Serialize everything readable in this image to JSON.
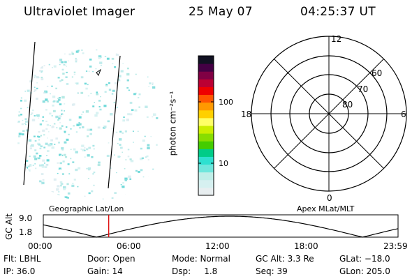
{
  "header": {
    "instrument": "Ultraviolet Imager",
    "date": "25 May 07",
    "time": "04:25:37 UT"
  },
  "colorbar": {
    "label": "photon cm⁻²s⁻¹",
    "ticks": [
      {
        "label": "100",
        "value": 100
      },
      {
        "label": "10",
        "value": 10
      }
    ],
    "colors": [
      "#e8eef0",
      "#d6f0f0",
      "#bfeee8",
      "#6fe6dc",
      "#2ee0d0",
      "#00cc88",
      "#44cc00",
      "#88dd00",
      "#ccee00",
      "#ffff66",
      "#ffd000",
      "#ff9900",
      "#ff5500",
      "#ee0000",
      "#bb0033",
      "#800044",
      "#440044",
      "#111122"
    ]
  },
  "polar_plot": {
    "mlt_labels": {
      "top": "12",
      "right": "6",
      "bottom": "0",
      "left": "18"
    },
    "lat_labels": [
      "60",
      "70",
      "80"
    ]
  },
  "timeline": {
    "ylabel": "GC Alt",
    "yticks": [
      "9.0",
      "1.8"
    ],
    "left_caption": "Geographic Lat/Lon",
    "right_caption": "Apex MLat/MLT",
    "xticks": [
      "00:00",
      "06:00",
      "12:00",
      "18:00",
      "23:59"
    ],
    "current_time_hours": 4.427,
    "alt_max": 9.0,
    "alt_min": 1.8
  },
  "info": {
    "row1": {
      "flt": "Flt: LBHL",
      "door": "Door: Open",
      "mode": "Mode: Normal",
      "gc_alt": "GC Alt: 3.3 Re",
      "glat": "GLat: −18.0"
    },
    "row2": {
      "ip": "IP: 36.0",
      "gain": "Gain: 14",
      "dsp": "Dsp:     1.8",
      "seq": "Seq: 39",
      "glon": "GLon: 205.0"
    }
  }
}
